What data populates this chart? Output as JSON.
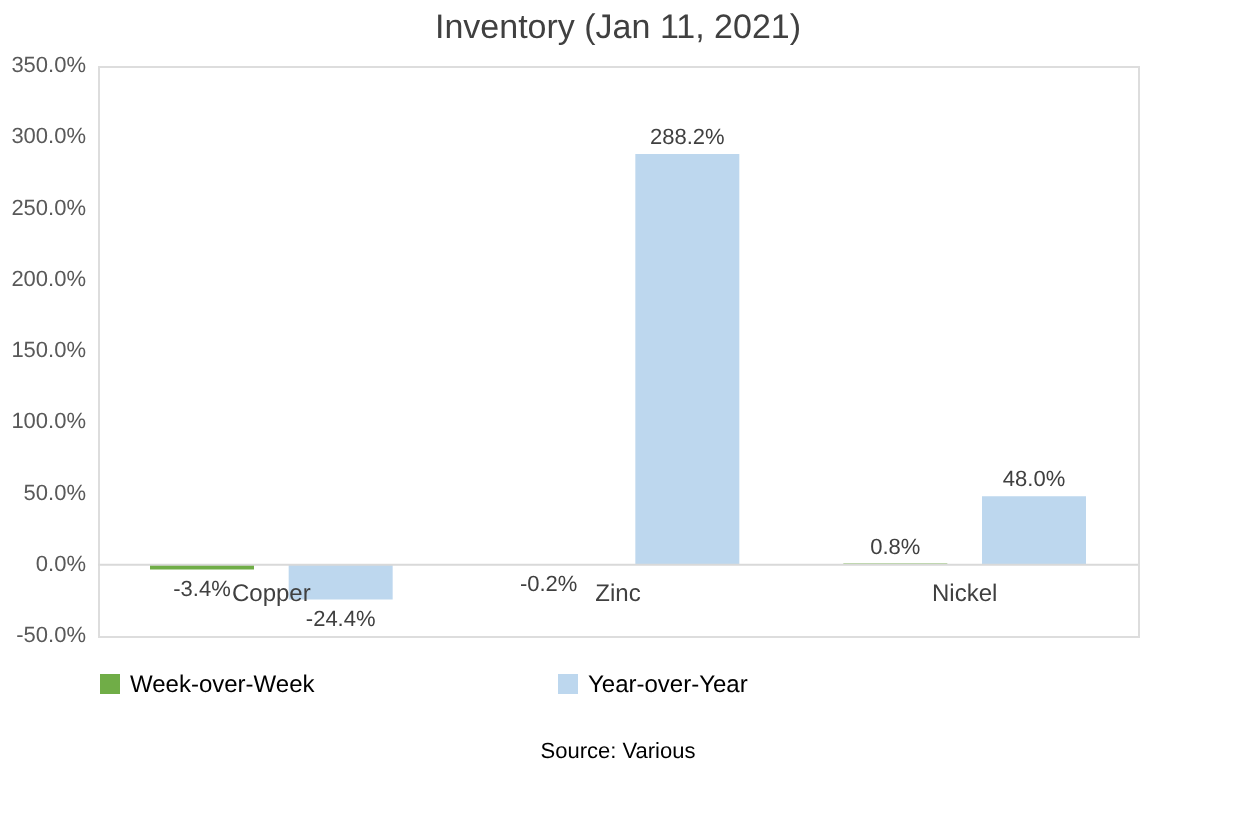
{
  "chart_data": {
    "type": "bar",
    "title": "Inventory (Jan 11, 2021)",
    "categories": [
      "Copper",
      "Zinc",
      "Nickel"
    ],
    "series": [
      {
        "name": "Week-over-Week",
        "color": "#70ad47",
        "values": [
          -3.4,
          -0.2,
          0.8
        ],
        "value_labels": [
          "-3.4%",
          "-0.2%",
          "0.8%"
        ]
      },
      {
        "name": "Year-over-Year",
        "color": "#bdd7ee",
        "values": [
          -24.4,
          288.2,
          48.0
        ],
        "value_labels": [
          "-24.4%",
          "288.2%",
          "48.0%"
        ]
      }
    ],
    "ylim": [
      -50,
      350
    ],
    "yticks": [
      {
        "value": -50,
        "label": "-50.0%"
      },
      {
        "value": 0,
        "label": "0.0%"
      },
      {
        "value": 50,
        "label": "50.0%"
      },
      {
        "value": 100,
        "label": "100.0%"
      },
      {
        "value": 150,
        "label": "150.0%"
      },
      {
        "value": 200,
        "label": "200.0%"
      },
      {
        "value": 250,
        "label": "250.0%"
      },
      {
        "value": 300,
        "label": "300.0%"
      },
      {
        "value": 350,
        "label": "350.0%"
      }
    ],
    "grid": false,
    "legend": "bottom",
    "annotations": [
      "Source: Various"
    ]
  }
}
